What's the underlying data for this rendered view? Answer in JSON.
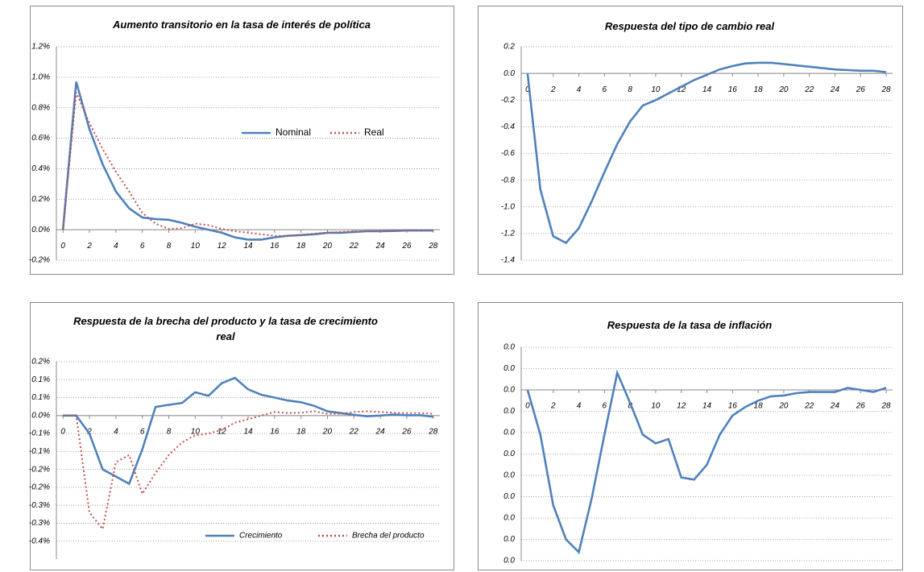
{
  "chart_data": [
    {
      "type": "line",
      "title": "Aumento transitorio en la tasa de interés de política",
      "x": [
        0,
        1,
        2,
        3,
        4,
        5,
        6,
        7,
        8,
        9,
        10,
        11,
        12,
        13,
        14,
        15,
        16,
        17,
        18,
        19,
        20,
        21,
        22,
        23,
        24,
        25,
        26,
        27,
        28
      ],
      "xlim": [
        -0.5,
        28.5
      ],
      "xticks": [
        0,
        2,
        4,
        6,
        8,
        10,
        12,
        14,
        16,
        18,
        20,
        22,
        24,
        26,
        28
      ],
      "ylim": [
        -0.2,
        1.2
      ],
      "yticks": [
        {
          "value": 1.2,
          "label": "1.2%"
        },
        {
          "value": 1.0,
          "label": "1.0%"
        },
        {
          "value": 0.8,
          "label": "0.8%"
        },
        {
          "value": 0.6,
          "label": "0.6%"
        },
        {
          "value": 0.4,
          "label": "0.4%"
        },
        {
          "value": 0.2,
          "label": "0.2%"
        },
        {
          "value": 0,
          "label": "0.0%"
        },
        {
          "value": -0.2,
          "label": "-0.2%"
        }
      ],
      "grid": true,
      "series": [
        {
          "name": "Nominal",
          "color": "#4f81bd",
          "style": "solid",
          "values": [
            0,
            0.97,
            0.66,
            0.43,
            0.25,
            0.14,
            0.08,
            0.07,
            0.065,
            0.045,
            0.02,
            0,
            -0.02,
            -0.05,
            -0.065,
            -0.065,
            -0.05,
            -0.04,
            -0.035,
            -0.03,
            -0.02,
            -0.02,
            -0.015,
            -0.01,
            -0.01,
            -0.008,
            -0.005,
            -0.005,
            -0.005
          ]
        },
        {
          "name": "Real",
          "color": "#c0504d",
          "style": "dotted",
          "values": [
            0,
            0.9,
            0.7,
            0.53,
            0.38,
            0.25,
            0.11,
            0.04,
            0.005,
            0.01,
            0.04,
            0.03,
            0.005,
            -0.01,
            -0.02,
            -0.03,
            -0.04,
            -0.04,
            -0.035,
            -0.025,
            -0.02,
            -0.015,
            -0.01,
            -0.01,
            -0.01,
            -0.008,
            -0.005,
            -0.005,
            -0.005
          ]
        }
      ]
    },
    {
      "type": "line",
      "title": "Respuesta del tipo de cambio real",
      "x": [
        0,
        1,
        2,
        3,
        4,
        5,
        6,
        7,
        8,
        9,
        10,
        11,
        12,
        13,
        14,
        15,
        16,
        17,
        18,
        19,
        20,
        21,
        22,
        23,
        24,
        25,
        26,
        27,
        28
      ],
      "xlim": [
        -0.5,
        28.5
      ],
      "xticks": [
        0,
        2,
        4,
        6,
        8,
        10,
        12,
        14,
        16,
        18,
        20,
        22,
        24,
        26,
        28
      ],
      "ylim": [
        -1.4,
        0.2
      ],
      "yticks": [
        0.2,
        {
          "value": 0,
          "label": "0.0"
        },
        -0.2,
        -0.4,
        -0.6,
        -0.8,
        {
          "value": -1,
          "label": "-1.0"
        },
        -1.2,
        -1.4
      ],
      "grid": true,
      "color": "#4f81bd",
      "values": [
        0,
        -0.87,
        -1.22,
        -1.27,
        -1.16,
        -0.96,
        -0.74,
        -0.53,
        -0.36,
        -0.24,
        -0.2,
        -0.15,
        -0.1,
        -0.05,
        -0.01,
        0.03,
        0.055,
        0.075,
        0.08,
        0.08,
        0.07,
        0.06,
        0.05,
        0.04,
        0.03,
        0.025,
        0.02,
        0.02,
        0.01
      ]
    },
    {
      "type": "line",
      "title": "Respuesta de la brecha del producto y la tasa de crecimiento real",
      "x": [
        0,
        1,
        2,
        3,
        4,
        5,
        6,
        7,
        8,
        9,
        10,
        11,
        12,
        13,
        14,
        15,
        16,
        17,
        18,
        19,
        20,
        21,
        22,
        23,
        24,
        25,
        26,
        27,
        28
      ],
      "xlim": [
        -0.5,
        28.5
      ],
      "xticks": [
        0,
        2,
        4,
        6,
        8,
        10,
        12,
        14,
        16,
        18,
        20,
        22,
        24,
        26,
        28
      ],
      "ylim": [
        -0.4,
        0.15
      ],
      "yticks": [
        {
          "value": 0.15,
          "label": "0.2%"
        },
        {
          "value": 0.1,
          "label": "0.1%"
        },
        {
          "value": 0.05,
          "label": "0.1%"
        },
        {
          "value": 0,
          "label": "0.0%"
        },
        {
          "value": -0.05,
          "label": "-0.1%"
        },
        {
          "value": -0.1,
          "label": "-0.1%"
        },
        {
          "value": -0.15,
          "label": "-0.2%"
        },
        {
          "value": -0.2,
          "label": "-0.2%"
        },
        {
          "value": -0.25,
          "label": "-0.3%"
        },
        {
          "value": -0.3,
          "label": "-0.3%"
        },
        {
          "value": -0.35,
          "label": "-0.4%"
        }
      ],
      "grid": true,
      "series": [
        {
          "name": "Crecimiento",
          "color": "#4f81bd",
          "style": "solid",
          "values": [
            0,
            0,
            -0.05,
            -0.15,
            -0.17,
            -0.19,
            -0.094,
            0.024,
            0.03,
            0.035,
            0.065,
            0.055,
            0.09,
            0.105,
            0.073,
            0.058,
            0.05,
            0.042,
            0.037,
            0.027,
            0.012,
            0.007,
            0.002,
            -0.002,
            0,
            0.003,
            0.001,
            0.001,
            -0.003
          ]
        },
        {
          "name": "Brecha del producto",
          "color": "#c0504d",
          "style": "dotted",
          "values": [
            0,
            0,
            -0.27,
            -0.316,
            -0.13,
            -0.11,
            -0.218,
            -0.16,
            -0.11,
            -0.075,
            -0.055,
            -0.05,
            -0.04,
            -0.02,
            -0.01,
            0,
            0.01,
            0.007,
            0.008,
            0.012,
            0.005,
            0.005,
            0.01,
            0.012,
            0.01,
            0.008,
            0.007,
            0.007,
            0.005
          ]
        }
      ]
    },
    {
      "type": "line",
      "title": "Respuesta de la tasa de inflación",
      "x": [
        0,
        1,
        2,
        3,
        4,
        5,
        6,
        7,
        8,
        9,
        10,
        11,
        12,
        13,
        14,
        15,
        16,
        17,
        18,
        19,
        20,
        21,
        22,
        23,
        24,
        25,
        26,
        27,
        28
      ],
      "xlim": [
        -0.5,
        28.5
      ],
      "xticks": [
        0,
        2,
        4,
        6,
        8,
        10,
        12,
        14,
        16,
        18,
        20,
        22,
        24,
        26,
        28
      ],
      "ylim": [
        -0.008,
        0.002
      ],
      "yticks": [
        {
          "value": 0.002,
          "label": "0.0"
        },
        {
          "value": 0.001,
          "label": "0.0"
        },
        {
          "value": 0,
          "label": "0.0"
        },
        {
          "value": -0.001,
          "label": "0.0"
        },
        {
          "value": -0.002,
          "label": "0.0"
        },
        {
          "value": -0.003,
          "label": "0.0"
        },
        {
          "value": -0.004,
          "label": "0.0"
        },
        {
          "value": -0.005,
          "label": "0.0"
        },
        {
          "value": -0.006,
          "label": "0.0"
        },
        {
          "value": -0.007,
          "label": "0.0"
        },
        {
          "value": -0.008,
          "label": "0.0"
        }
      ],
      "grid": true,
      "color": "#4f81bd",
      "values": [
        0,
        -0.0021,
        -0.0054,
        -0.007,
        -0.0076,
        -0.0051,
        -0.0021,
        0.0008,
        -0.0006,
        -0.0021,
        -0.0025,
        -0.0023,
        -0.0041,
        -0.0042,
        -0.0035,
        -0.0021,
        -0.0012,
        -0.0008,
        -0.0005,
        -0.0003,
        -0.00026,
        -0.00015,
        -0.0001,
        -0.0001,
        -0.0001,
        0.0001,
        0,
        -0.0001,
        0.0001
      ]
    }
  ]
}
